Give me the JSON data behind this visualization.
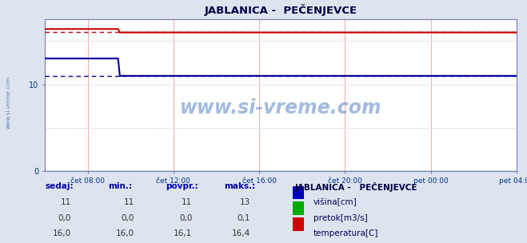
{
  "title": "JABLANICA -  PEČENJEVCE",
  "legend_title": "JABLANICA -   PEČENJEVCE",
  "bg_color": "#dde4ee",
  "plot_bg_color": "#ffffff",
  "grid_color_v": "#f0aaaa",
  "grid_color_h": "#e8e0f0",
  "x_total_hours": 22,
  "x_tick_labels": [
    "čet 08:00",
    "čet 12:00",
    "čet 16:00",
    "čet 20:00",
    "pet 00:00",
    "pet 04:00"
  ],
  "x_tick_positions": [
    2,
    6,
    10,
    14,
    18,
    22
  ],
  "y_ticks": [
    0,
    10
  ],
  "ylim": [
    0,
    17.5
  ],
  "height_data": {
    "color": "#000099",
    "step_x": 3.5,
    "y_before": 13,
    "y_after": 11,
    "avg": 11.0
  },
  "flow_data": {
    "color": "#00aa00",
    "value": 0.0
  },
  "temp_data": {
    "color": "#cc0000",
    "step_x": 3.5,
    "y_before": 16.4,
    "y_after": 16.0,
    "avg": 16.1
  },
  "table_headers": [
    "sedaj:",
    "min.:",
    "povpr.:",
    "maks.:"
  ],
  "table_height": [
    "11",
    "11",
    "11",
    "13"
  ],
  "table_flow": [
    "0,0",
    "0,0",
    "0,0",
    "0,1"
  ],
  "table_temp": [
    "16,0",
    "16,0",
    "16,1",
    "16,4"
  ],
  "legend_items": [
    {
      "label": "višina[cm]",
      "color": "#0000bb"
    },
    {
      "label": "pretok[m3/s]",
      "color": "#00aa00"
    },
    {
      "label": "temperatura[C]",
      "color": "#cc0000"
    }
  ],
  "watermark": "www.si-vreme.com",
  "side_text": "www.si-vreme.com"
}
